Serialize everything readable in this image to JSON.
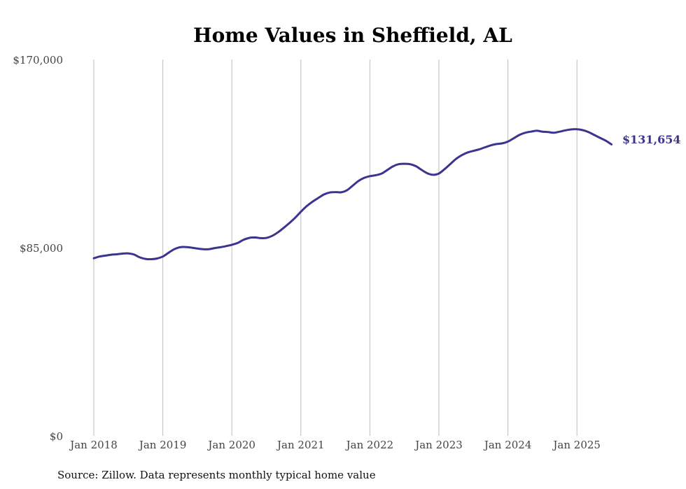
{
  "chart_data": {
    "type": "line",
    "title": "Home Values in Sheffield, AL",
    "xlabel": "",
    "ylabel": "",
    "x_ticks": [
      "Jan 2018",
      "Jan 2019",
      "Jan 2020",
      "Jan 2021",
      "Jan 2022",
      "Jan 2023",
      "Jan 2024",
      "Jan 2025"
    ],
    "y_ticks": [
      "$0",
      "$85,000",
      "$170,000"
    ],
    "ylim": [
      0,
      170000
    ],
    "xlim": [
      "2018-01",
      "2025-07"
    ],
    "grid": "vertical",
    "legend": "none",
    "series": [
      {
        "color": "#3b3491",
        "points": [
          [
            "2018-01",
            80200
          ],
          [
            "2018-02",
            81000
          ],
          [
            "2018-03",
            81400
          ],
          [
            "2018-04",
            81800
          ],
          [
            "2018-05",
            82000
          ],
          [
            "2018-06",
            82300
          ],
          [
            "2018-07",
            82400
          ],
          [
            "2018-08",
            81900
          ],
          [
            "2018-09",
            80600
          ],
          [
            "2018-10",
            79900
          ],
          [
            "2018-11",
            79800
          ],
          [
            "2018-12",
            80100
          ],
          [
            "2019-01",
            81000
          ],
          [
            "2019-02",
            82700
          ],
          [
            "2019-03",
            84300
          ],
          [
            "2019-04",
            85200
          ],
          [
            "2019-05",
            85300
          ],
          [
            "2019-06",
            85000
          ],
          [
            "2019-07",
            84600
          ],
          [
            "2019-08",
            84300
          ],
          [
            "2019-09",
            84300
          ],
          [
            "2019-10",
            84800
          ],
          [
            "2019-11",
            85200
          ],
          [
            "2019-12",
            85700
          ],
          [
            "2020-01",
            86300
          ],
          [
            "2020-02",
            87100
          ],
          [
            "2020-03",
            88500
          ],
          [
            "2020-04",
            89400
          ],
          [
            "2020-05",
            89600
          ],
          [
            "2020-06",
            89300
          ],
          [
            "2020-07",
            89400
          ],
          [
            "2020-08",
            90300
          ],
          [
            "2020-09",
            91900
          ],
          [
            "2020-10",
            93900
          ],
          [
            "2020-11",
            96100
          ],
          [
            "2020-12",
            98500
          ],
          [
            "2021-01",
            101200
          ],
          [
            "2021-02",
            103700
          ],
          [
            "2021-03",
            105700
          ],
          [
            "2021-04",
            107400
          ],
          [
            "2021-05",
            109000
          ],
          [
            "2021-06",
            109900
          ],
          [
            "2021-07",
            110100
          ],
          [
            "2021-08",
            110000
          ],
          [
            "2021-09",
            110900
          ],
          [
            "2021-10",
            113000
          ],
          [
            "2021-11",
            115100
          ],
          [
            "2021-12",
            116500
          ],
          [
            "2022-01",
            117300
          ],
          [
            "2022-02",
            117700
          ],
          [
            "2022-03",
            118400
          ],
          [
            "2022-04",
            120000
          ],
          [
            "2022-05",
            121700
          ],
          [
            "2022-06",
            122700
          ],
          [
            "2022-07",
            122900
          ],
          [
            "2022-08",
            122700
          ],
          [
            "2022-09",
            121800
          ],
          [
            "2022-10",
            120100
          ],
          [
            "2022-11",
            118600
          ],
          [
            "2022-12",
            117900
          ],
          [
            "2023-01",
            118500
          ],
          [
            "2023-02",
            120500
          ],
          [
            "2023-03",
            122800
          ],
          [
            "2023-04",
            125100
          ],
          [
            "2023-05",
            126800
          ],
          [
            "2023-06",
            128000
          ],
          [
            "2023-07",
            128700
          ],
          [
            "2023-08",
            129400
          ],
          [
            "2023-09",
            130300
          ],
          [
            "2023-10",
            131200
          ],
          [
            "2023-11",
            131800
          ],
          [
            "2023-12",
            132100
          ],
          [
            "2024-01",
            132900
          ],
          [
            "2024-02",
            134400
          ],
          [
            "2024-03",
            135900
          ],
          [
            "2024-04",
            136900
          ],
          [
            "2024-05",
            137400
          ],
          [
            "2024-06",
            137800
          ],
          [
            "2024-07",
            137400
          ],
          [
            "2024-08",
            137200
          ],
          [
            "2024-09",
            136900
          ],
          [
            "2024-10",
            137400
          ],
          [
            "2024-11",
            138000
          ],
          [
            "2024-12",
            138400
          ],
          [
            "2025-01",
            138500
          ],
          [
            "2025-02",
            138100
          ],
          [
            "2025-03",
            137200
          ],
          [
            "2025-04",
            135900
          ],
          [
            "2025-05",
            134600
          ],
          [
            "2025-06",
            133300
          ],
          [
            "2025-07",
            131654
          ]
        ],
        "end_label": "$131,654"
      }
    ],
    "source_note": "Source: Zillow. Data represents monthly typical home value"
  }
}
